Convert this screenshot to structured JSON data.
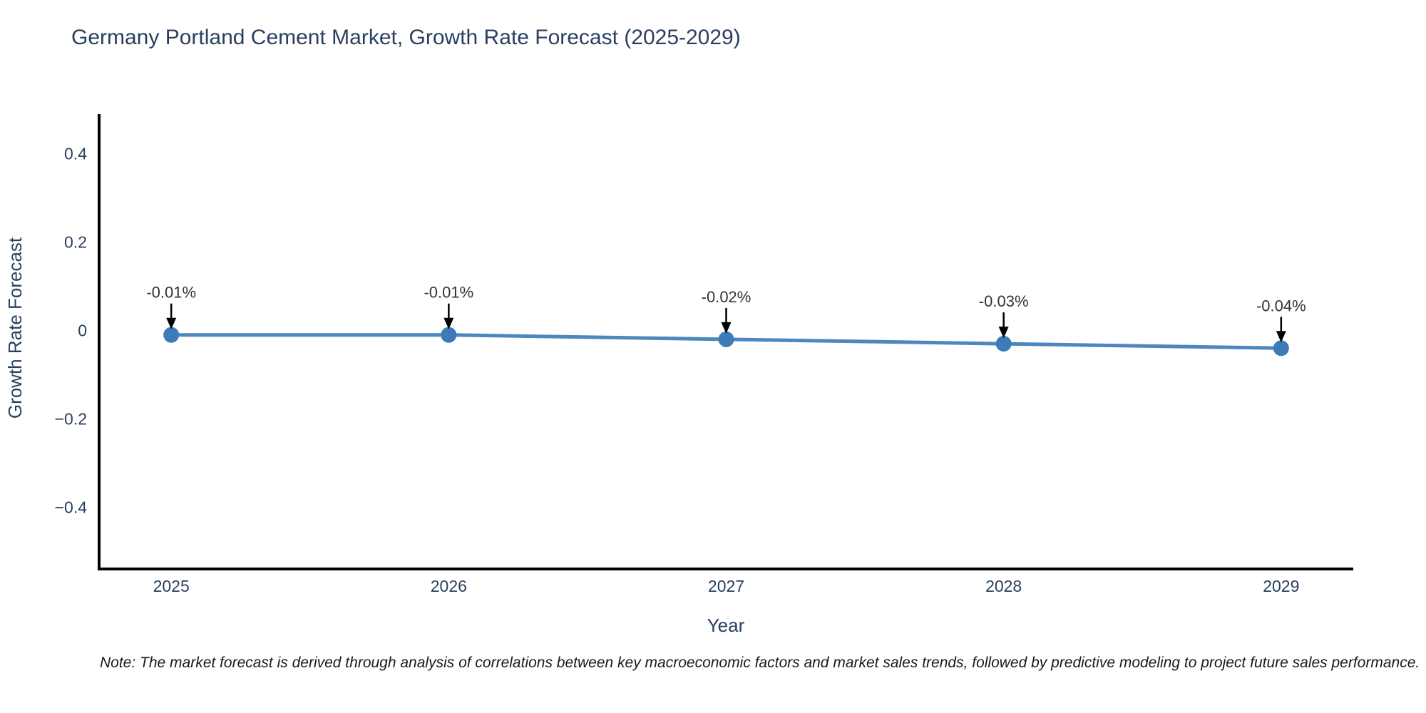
{
  "chart": {
    "title": "Germany Portland Cement Market, Growth Rate Forecast (2025-2029)"
  },
  "chart_data": {
    "type": "line",
    "x": [
      2025,
      2026,
      2027,
      2028,
      2029
    ],
    "values": [
      -0.01,
      -0.01,
      -0.02,
      -0.03,
      -0.04
    ],
    "point_labels": [
      "-0.01%",
      "-0.01%",
      "-0.02%",
      "-0.03%",
      "-0.04%"
    ],
    "xtick_labels": [
      "2025",
      "2026",
      "2027",
      "2028",
      "2029"
    ],
    "yticks": [
      0.4,
      0.2,
      0,
      -0.2,
      -0.4
    ],
    "ytick_labels": [
      "0.4",
      "0.2",
      "0",
      "−0.2",
      "−0.4"
    ],
    "xlabel": "Year",
    "ylabel": "Growth Rate Forecast",
    "xlim": [
      2024.74,
      2029.26
    ],
    "ylim": [
      -0.54,
      0.49
    ],
    "grid": false,
    "legend": "none",
    "line_color": "#4c88bd",
    "marker_color": "#3c7ab8",
    "axis_color": "#000000",
    "arrow_color": "#000000",
    "tick_color": "#2a3f5f",
    "annotation_color": "#333333"
  },
  "note": "Note: The market forecast is derived through analysis of correlations between key macroeconomic factors and market sales trends, followed by predictive modeling to project future sales performance."
}
